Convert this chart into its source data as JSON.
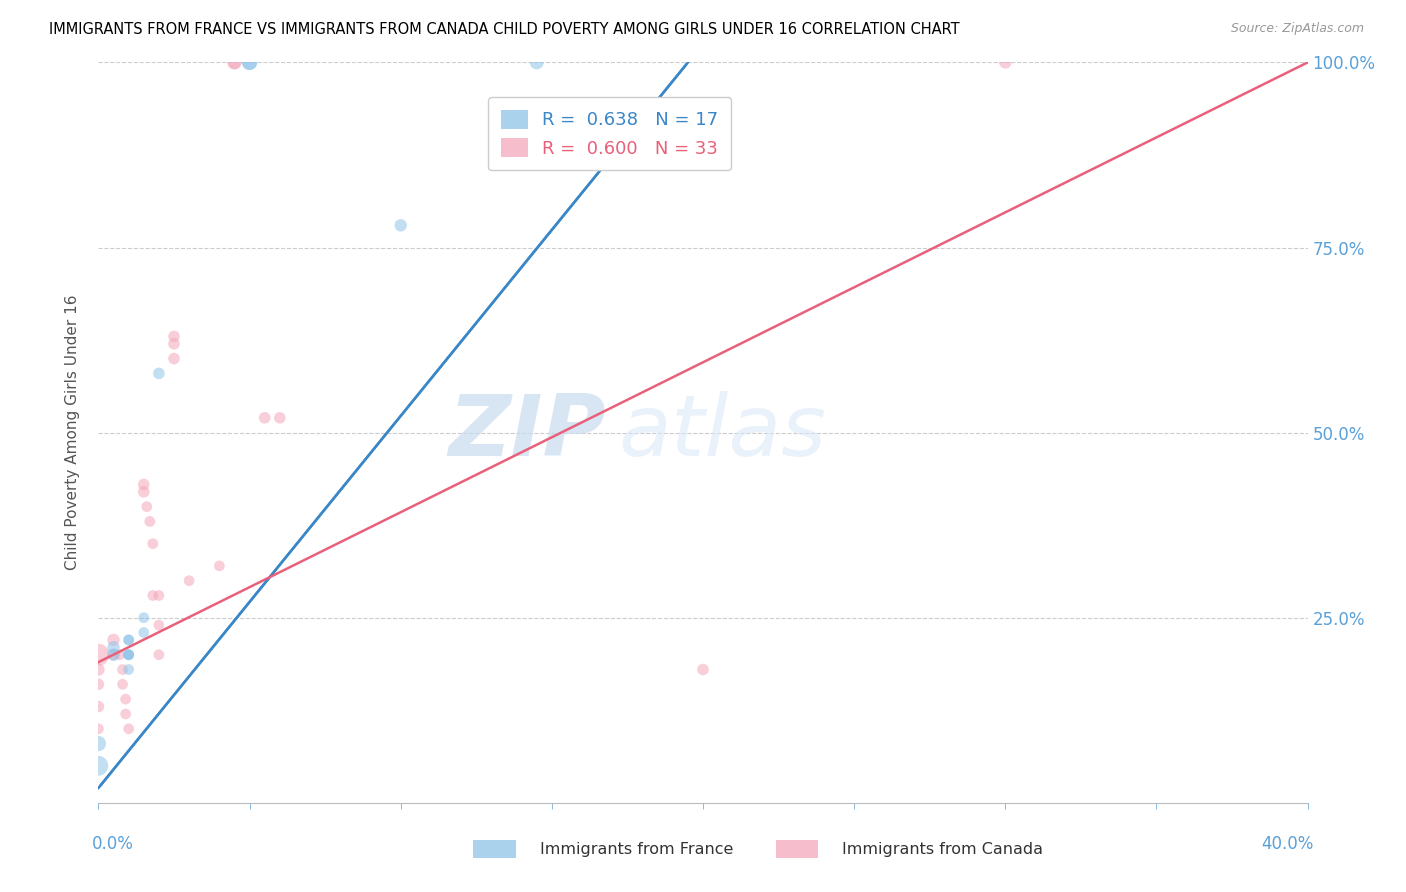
{
  "title": "IMMIGRANTS FROM FRANCE VS IMMIGRANTS FROM CANADA CHILD POVERTY AMONG GIRLS UNDER 16 CORRELATION CHART",
  "source": "Source: ZipAtlas.com",
  "ylabel": "Child Poverty Among Girls Under 16",
  "xlim": [
    0.0,
    0.4
  ],
  "ylim": [
    0.0,
    1.0
  ],
  "france_R": 0.638,
  "france_N": 17,
  "canada_R": 0.6,
  "canada_N": 33,
  "france_color": "#8ec4e8",
  "canada_color": "#f4a7bb",
  "france_line_color": "#3a87c8",
  "canada_line_color": "#e8607a",
  "watermark_zip": "ZIP",
  "watermark_atlas": "atlas",
  "france_line_x0": 0.0,
  "france_line_y0": 0.02,
  "france_line_x1": 0.195,
  "france_line_y1": 1.0,
  "canada_line_x0": 0.0,
  "canada_line_y0": 0.19,
  "canada_line_x1": 0.4,
  "canada_line_y1": 1.0,
  "france_scatter": [
    [
      0.0,
      0.05
    ],
    [
      0.0,
      0.08
    ],
    [
      0.005,
      0.2
    ],
    [
      0.005,
      0.21
    ],
    [
      0.01,
      0.2
    ],
    [
      0.01,
      0.22
    ],
    [
      0.01,
      0.2
    ],
    [
      0.01,
      0.18
    ],
    [
      0.01,
      0.2
    ],
    [
      0.01,
      0.22
    ],
    [
      0.015,
      0.25
    ],
    [
      0.015,
      0.23
    ],
    [
      0.02,
      0.58
    ],
    [
      0.05,
      1.0
    ],
    [
      0.05,
      1.0
    ],
    [
      0.1,
      0.78
    ],
    [
      0.145,
      1.0
    ]
  ],
  "canada_scatter": [
    [
      0.0,
      0.2
    ],
    [
      0.0,
      0.18
    ],
    [
      0.0,
      0.16
    ],
    [
      0.0,
      0.13
    ],
    [
      0.0,
      0.1
    ],
    [
      0.005,
      0.22
    ],
    [
      0.005,
      0.2
    ],
    [
      0.007,
      0.2
    ],
    [
      0.008,
      0.18
    ],
    [
      0.008,
      0.16
    ],
    [
      0.009,
      0.14
    ],
    [
      0.009,
      0.12
    ],
    [
      0.01,
      0.1
    ],
    [
      0.015,
      0.43
    ],
    [
      0.015,
      0.42
    ],
    [
      0.016,
      0.4
    ],
    [
      0.017,
      0.38
    ],
    [
      0.018,
      0.35
    ],
    [
      0.018,
      0.28
    ],
    [
      0.02,
      0.28
    ],
    [
      0.02,
      0.24
    ],
    [
      0.02,
      0.2
    ],
    [
      0.025,
      0.63
    ],
    [
      0.025,
      0.62
    ],
    [
      0.025,
      0.6
    ],
    [
      0.03,
      0.3
    ],
    [
      0.04,
      0.32
    ],
    [
      0.045,
      1.0
    ],
    [
      0.045,
      1.0
    ],
    [
      0.055,
      0.52
    ],
    [
      0.06,
      0.52
    ],
    [
      0.2,
      0.18
    ],
    [
      0.3,
      1.0
    ]
  ],
  "france_sizes": [
    200,
    120,
    80,
    80,
    60,
    60,
    60,
    60,
    60,
    60,
    60,
    60,
    70,
    120,
    120,
    80,
    100
  ],
  "canada_sizes": [
    250,
    80,
    70,
    70,
    60,
    80,
    70,
    60,
    60,
    60,
    60,
    60,
    60,
    70,
    70,
    60,
    60,
    60,
    60,
    60,
    60,
    60,
    70,
    70,
    70,
    60,
    60,
    100,
    100,
    70,
    70,
    70,
    80
  ]
}
